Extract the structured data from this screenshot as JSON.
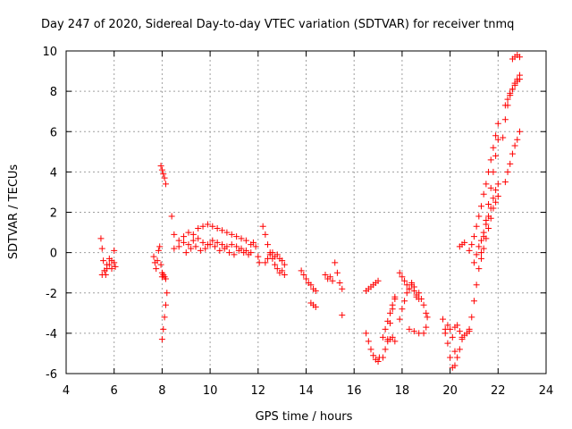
{
  "chart_data": {
    "type": "scatter",
    "title": "Day 247 of 2020, Sidereal Day-to-day VTEC variation (SDTVAR) for receiver tnmq",
    "xlabel": "GPS time / hours",
    "ylabel": "SDTVAR / TECUs",
    "xlim": [
      4,
      24
    ],
    "ylim": [
      -6,
      10
    ],
    "xticks": [
      4,
      6,
      8,
      10,
      12,
      14,
      16,
      18,
      20,
      22,
      24
    ],
    "yticks": [
      -6,
      -4,
      -2,
      0,
      2,
      4,
      6,
      8,
      10
    ],
    "xtick_labels": [
      "4",
      "6",
      "8",
      "10",
      "12",
      "14",
      "16",
      "18",
      "20",
      "22",
      "24"
    ],
    "ytick_labels": [
      "-6",
      "-4",
      "-2",
      "0",
      "2",
      "4",
      "6",
      "8",
      "10"
    ],
    "grid": true,
    "marker": "+",
    "color": "#ff0000",
    "series": [
      {
        "name": "s1",
        "x": [
          5.45,
          5.5,
          5.55,
          5.6,
          5.65,
          5.7,
          5.8,
          5.9,
          6.0,
          6.05
        ],
        "y": [
          0.7,
          0.2,
          -0.4,
          -0.9,
          -1.1,
          -0.6,
          -0.3,
          -0.8,
          -0.5,
          -0.7
        ]
      },
      {
        "name": "s2",
        "x": [
          5.5,
          5.6,
          5.7,
          5.8,
          5.9,
          6.0
        ],
        "y": [
          -1.1,
          -0.9,
          -0.8,
          -0.6,
          -0.4,
          0.1
        ]
      },
      {
        "name": "s3",
        "x": [
          7.65,
          7.7,
          7.75,
          7.8,
          7.85,
          7.9,
          7.95,
          8.0
        ],
        "y": [
          -0.2,
          -0.5,
          -0.8,
          -0.4,
          0.1,
          0.3,
          -0.6,
          -1.0
        ]
      },
      {
        "name": "s4",
        "x": [
          7.95,
          8.0,
          8.05,
          8.1,
          8.15
        ],
        "y": [
          4.3,
          4.1,
          3.9,
          3.7,
          3.4
        ]
      },
      {
        "name": "s5",
        "x": [
          8.0,
          8.05,
          8.1,
          8.15
        ],
        "y": [
          -1.2,
          -1.1,
          -1.2,
          -1.3
        ]
      },
      {
        "name": "s6",
        "x": [
          8.0,
          8.05,
          8.1,
          8.15,
          8.2
        ],
        "y": [
          -4.3,
          -3.8,
          -3.2,
          -2.6,
          -2.0
        ]
      },
      {
        "name": "s7",
        "x": [
          8.4,
          8.5,
          8.7,
          8.9,
          9.1,
          9.3,
          9.5,
          9.7,
          9.9,
          10.1,
          10.3,
          10.5,
          10.7,
          10.9,
          11.1,
          11.3,
          11.5,
          11.7
        ],
        "y": [
          1.8,
          0.9,
          0.6,
          0.8,
          1.0,
          0.9,
          1.2,
          1.3,
          1.4,
          1.3,
          1.2,
          1.1,
          1.0,
          0.9,
          0.8,
          0.7,
          0.6,
          0.4
        ]
      },
      {
        "name": "s8",
        "x": [
          8.5,
          8.7,
          8.9,
          9.1,
          9.3,
          9.5,
          9.7,
          9.9,
          10.1,
          10.3,
          10.5,
          10.7,
          10.9,
          11.1,
          11.3,
          11.5,
          11.7
        ],
        "y": [
          0.2,
          0.3,
          0.5,
          0.4,
          0.6,
          0.7,
          0.5,
          0.4,
          0.6,
          0.5,
          0.4,
          0.3,
          0.4,
          0.3,
          0.2,
          0.1,
          0.0
        ]
      },
      {
        "name": "s9",
        "x": [
          9.0,
          9.2,
          9.4,
          9.6,
          9.8,
          10.0,
          10.2,
          10.4,
          10.6,
          10.8,
          11.0,
          11.2,
          11.4,
          11.6
        ],
        "y": [
          0.0,
          0.2,
          0.3,
          0.1,
          0.2,
          0.4,
          0.3,
          0.1,
          0.2,
          0.0,
          -0.1,
          0.1,
          0.0,
          -0.1
        ]
      },
      {
        "name": "s10",
        "x": [
          11.8,
          11.9,
          12.0,
          12.05
        ],
        "y": [
          0.5,
          0.3,
          -0.2,
          -0.5
        ]
      },
      {
        "name": "s11",
        "x": [
          12.2,
          12.3,
          12.4,
          12.5,
          12.6,
          12.7,
          12.8,
          12.9,
          13.0,
          13.1
        ],
        "y": [
          1.3,
          0.9,
          0.4,
          0.0,
          -0.3,
          -0.6,
          -0.8,
          -1.0,
          -0.9,
          -1.1
        ]
      },
      {
        "name": "s12",
        "x": [
          12.3,
          12.4,
          12.5,
          12.6,
          12.7,
          12.8,
          12.9,
          13.0,
          13.1
        ],
        "y": [
          -0.5,
          -0.3,
          -0.1,
          0.0,
          -0.2,
          -0.1,
          -0.3,
          -0.4,
          -0.6
        ]
      },
      {
        "name": "s13",
        "x": [
          13.8,
          13.9,
          14.0,
          14.1,
          14.2,
          14.3,
          14.4
        ],
        "y": [
          -0.9,
          -1.1,
          -1.3,
          -1.5,
          -1.6,
          -1.8,
          -1.9
        ]
      },
      {
        "name": "s14",
        "x": [
          14.2,
          14.3,
          14.4
        ],
        "y": [
          -2.5,
          -2.6,
          -2.7
        ]
      },
      {
        "name": "s15",
        "x": [
          14.8,
          14.9,
          15.0,
          15.1,
          15.2,
          15.3,
          15.4,
          15.5
        ],
        "y": [
          -1.1,
          -1.3,
          -1.2,
          -1.4,
          -0.5,
          -1.0,
          -1.5,
          -1.8
        ]
      },
      {
        "name": "s16",
        "x": [
          15.5
        ],
        "y": [
          -3.1
        ]
      },
      {
        "name": "s17",
        "x": [
          16.5,
          16.6,
          16.7,
          16.8,
          16.9,
          17.0,
          17.05
        ],
        "y": [
          -4.0,
          -4.4,
          -4.8,
          -5.1,
          -5.3,
          -5.4,
          -5.2
        ]
      },
      {
        "name": "s18",
        "x": [
          16.5,
          16.6,
          16.7,
          16.8,
          16.9,
          17.0
        ],
        "y": [
          -1.9,
          -1.8,
          -1.7,
          -1.6,
          -1.5,
          -1.4
        ]
      },
      {
        "name": "s19",
        "x": [
          17.2,
          17.3,
          17.4,
          17.5,
          17.6,
          17.7
        ],
        "y": [
          -5.2,
          -4.8,
          -4.3,
          -3.5,
          -2.8,
          -2.3
        ]
      },
      {
        "name": "s20",
        "x": [
          17.2,
          17.3,
          17.4,
          17.5,
          17.6,
          17.7
        ],
        "y": [
          -4.2,
          -3.8,
          -3.4,
          -3.0,
          -2.6,
          -2.2
        ]
      },
      {
        "name": "s21",
        "x": [
          17.4,
          17.5,
          17.6,
          17.7
        ],
        "y": [
          -4.4,
          -4.3,
          -4.2,
          -4.4
        ]
      },
      {
        "name": "s22",
        "x": [
          17.9,
          18.0,
          18.1,
          18.2,
          18.3,
          18.4,
          18.5,
          18.6,
          18.7
        ],
        "y": [
          -1.0,
          -1.2,
          -1.4,
          -1.6,
          -1.8,
          -1.5,
          -1.9,
          -2.2,
          -2.0
        ]
      },
      {
        "name": "s23",
        "x": [
          17.9,
          18.0,
          18.1,
          18.2,
          18.3,
          18.4,
          18.5,
          18.6,
          18.7
        ],
        "y": [
          -3.3,
          -2.8,
          -2.4,
          -2.0,
          -1.8,
          -1.6,
          -1.7,
          -2.1,
          -2.3
        ]
      },
      {
        "name": "s24",
        "x": [
          18.3,
          18.5,
          18.7,
          18.9,
          19.0
        ],
        "y": [
          -3.8,
          -3.9,
          -4.0,
          -4.0,
          -3.7
        ]
      },
      {
        "name": "s25",
        "x": [
          18.8,
          18.9,
          19.0,
          19.05
        ],
        "y": [
          -2.3,
          -2.6,
          -3.0,
          -3.2
        ]
      },
      {
        "name": "s26",
        "x": [
          19.7,
          19.8,
          19.9,
          20.0,
          20.1,
          20.2
        ],
        "y": [
          -3.3,
          -3.8,
          -4.5,
          -5.2,
          -5.7,
          -5.6
        ]
      },
      {
        "name": "s27",
        "x": [
          19.8,
          19.9,
          20.0,
          20.1,
          20.2,
          20.3,
          20.4,
          20.5
        ],
        "y": [
          -4.0,
          -3.6,
          -3.8,
          -4.2,
          -4.9,
          -5.2,
          -4.8,
          -4.3
        ]
      },
      {
        "name": "s28",
        "x": [
          20.2,
          20.3,
          20.4,
          20.5,
          20.6,
          20.7,
          20.8
        ],
        "y": [
          -3.7,
          -3.6,
          -3.9,
          -4.2,
          -4.1,
          -4.0,
          -3.8
        ]
      },
      {
        "name": "s29",
        "x": [
          20.4,
          20.5,
          20.6
        ],
        "y": [
          0.3,
          0.4,
          0.5
        ]
      },
      {
        "name": "s30",
        "x": [
          20.8,
          20.9,
          21.0,
          21.1,
          21.2,
          21.3,
          21.4,
          21.5,
          21.6,
          21.7,
          21.8,
          21.9,
          22.0
        ],
        "y": [
          -3.9,
          -3.2,
          -2.4,
          -1.6,
          -0.8,
          0.0,
          0.8,
          1.6,
          2.4,
          3.2,
          4.0,
          4.8,
          5.6
        ]
      },
      {
        "name": "s31",
        "x": [
          20.8,
          20.9,
          21.0,
          21.1,
          21.2,
          21.3,
          21.4,
          21.5,
          21.6,
          21.7,
          21.8,
          21.9,
          22.0
        ],
        "y": [
          0.1,
          0.4,
          0.8,
          1.3,
          1.8,
          2.3,
          2.9,
          3.4,
          4.0,
          4.6,
          5.2,
          5.8,
          6.4
        ]
      },
      {
        "name": "s32",
        "x": [
          21.0,
          21.1,
          21.2,
          21.3,
          21.4,
          21.5,
          21.6,
          21.7,
          21.8,
          21.9,
          22.0
        ],
        "y": [
          -0.5,
          -0.1,
          0.3,
          0.6,
          1.0,
          1.4,
          1.8,
          2.2,
          2.7,
          3.1,
          3.4
        ]
      },
      {
        "name": "s33",
        "x": [
          21.3,
          21.4,
          21.5,
          21.6,
          21.7,
          21.8,
          21.9,
          22.0
        ],
        "y": [
          -0.3,
          0.2,
          0.7,
          1.2,
          1.7,
          2.2,
          2.5,
          2.8
        ]
      },
      {
        "name": "s34",
        "x": [
          22.3,
          22.4,
          22.5,
          22.6,
          22.7,
          22.8,
          22.9
        ],
        "y": [
          3.5,
          4.0,
          4.4,
          4.9,
          5.3,
          5.6,
          6.0
        ]
      },
      {
        "name": "s35",
        "x": [
          22.2,
          22.3,
          22.4,
          22.5,
          22.6,
          22.7,
          22.8,
          22.9
        ],
        "y": [
          5.7,
          6.6,
          7.3,
          7.8,
          8.1,
          8.4,
          8.6,
          8.8
        ]
      },
      {
        "name": "s36",
        "x": [
          22.3,
          22.4,
          22.5,
          22.6,
          22.7,
          22.8,
          22.9
        ],
        "y": [
          7.3,
          7.6,
          7.9,
          8.1,
          8.3,
          8.5,
          8.6
        ]
      },
      {
        "name": "s37",
        "x": [
          22.6,
          22.7,
          22.8,
          22.9
        ],
        "y": [
          9.6,
          9.7,
          9.8,
          9.7
        ]
      }
    ]
  }
}
